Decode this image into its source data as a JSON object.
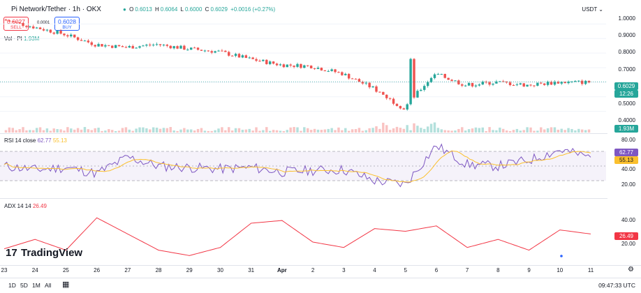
{
  "header": {
    "title": "Pi Network/Tether · 1h · OKX",
    "ohlc": {
      "o_label": "O",
      "o": "0.6013",
      "h_label": "H",
      "h": "0.6064",
      "l_label": "L",
      "l": "0.6000",
      "c_label": "C",
      "c": "0.6029",
      "change": "+0.0016 (+0.27%)"
    },
    "currency": "USDT"
  },
  "trade": {
    "sell_price": "0.6027",
    "sell_label": "SELL",
    "spread": "0.0001",
    "buy_price": "0.6028",
    "buy_label": "BUY"
  },
  "volume": {
    "label": "Vol · PI",
    "value": "1.93M",
    "tag": "1.93M"
  },
  "price_axis": {
    "ticks": [
      "1.0000",
      "0.9000",
      "0.8000",
      "0.7000",
      "0.5000",
      "0.4000"
    ],
    "last_price": "0.6029",
    "countdown": "12:26"
  },
  "rsi": {
    "label": "RSI 14 close",
    "value": "62.77",
    "ma_value": "55.13",
    "ticks": [
      "80.00",
      "40.00",
      "20.00"
    ]
  },
  "adx": {
    "label": "ADX 14 14",
    "value": "26.49",
    "ticks": [
      "40.00",
      "20.00"
    ]
  },
  "time_axis": [
    "23",
    "24",
    "25",
    "26",
    "27",
    "28",
    "29",
    "30",
    "31",
    "Apr",
    "2",
    "3",
    "4",
    "5",
    "6",
    "7",
    "8",
    "9",
    "10",
    "11"
  ],
  "bottom_bar": {
    "timeframes": [
      "1D",
      "5D",
      "1M",
      "All"
    ],
    "clock": "09:47:33 UTC"
  },
  "logo": "TradingView",
  "colors": {
    "up": "#26a69a",
    "down": "#ef5350",
    "rsi_line": "#7e57c2",
    "rsi_ma": "#fbc02d",
    "adx_line": "#f23645",
    "accent": "#2962ff"
  },
  "chart_data": [
    {
      "type": "candlestick",
      "title": "Pi Network/Tether · 1h · OKX",
      "x": [
        "23",
        "24",
        "25",
        "26",
        "27",
        "28",
        "29",
        "30",
        "31",
        "Apr",
        "2",
        "3",
        "4",
        "5",
        "6",
        "7",
        "8",
        "9",
        "10",
        "11"
      ],
      "close_approx": [
        1.03,
        0.98,
        0.93,
        0.86,
        0.84,
        0.86,
        0.83,
        0.81,
        0.76,
        0.72,
        0.71,
        0.66,
        0.56,
        0.42,
        0.66,
        0.58,
        0.6,
        0.58,
        0.6,
        0.6
      ],
      "ylim": [
        0.35,
        1.05
      ],
      "grid": true
    },
    {
      "type": "line",
      "title": "RSI 14 close",
      "series": [
        {
          "name": "RSI",
          "values": [
            50,
            45,
            48,
            40,
            62,
            50,
            48,
            46,
            48,
            42,
            44,
            45,
            30,
            25,
            78,
            52,
            50,
            58,
            72,
            62
          ]
        }
      ],
      "ylim": [
        10,
        90
      ]
    },
    {
      "type": "line",
      "title": "ADX 14 14",
      "series": [
        {
          "name": "ADX",
          "values": [
            15,
            22,
            14,
            38,
            26,
            14,
            10,
            16,
            34,
            36,
            20,
            16,
            30,
            28,
            32,
            16,
            22,
            14,
            29,
            26
          ]
        }
      ],
      "ylim": [
        5,
        50
      ]
    }
  ]
}
